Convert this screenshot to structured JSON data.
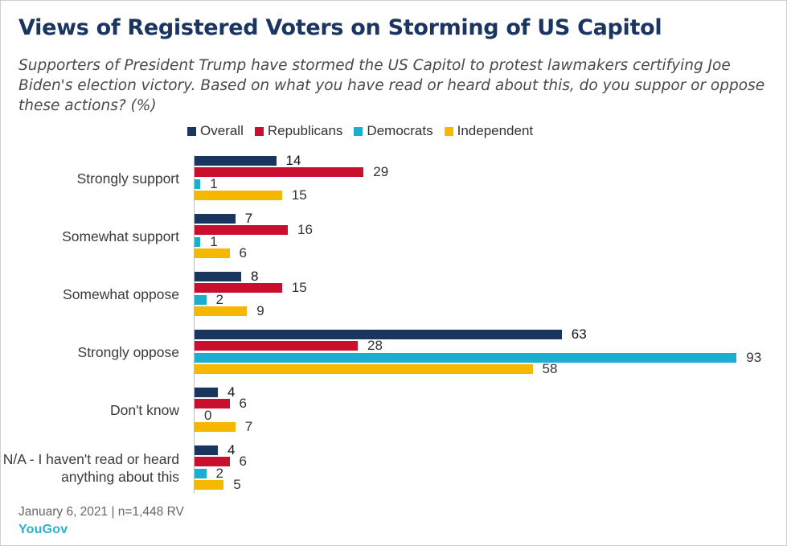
{
  "title": "Views of Registered Voters on Storming of US Capitol",
  "subtitle": "Supporters of President Trump have stormed the US Capitol to protest lawmakers certifying Joe Biden's election victory. Based on what you have read or heard about this, do you suppor or oppose these actions? (%)",
  "footer": {
    "note": "January 6, 2021 | n=1,448 RV",
    "brand": "YouGov"
  },
  "colors": {
    "Overall": "#1b3561",
    "Republicans": "#c8102e",
    "Democrats": "#1aafd0",
    "Independent": "#f4b800"
  },
  "chart_data": {
    "type": "bar",
    "orientation": "horizontal",
    "title": "Views of Registered Voters on Storming of US Capitol",
    "xlim": [
      0,
      100
    ],
    "grid": false,
    "legend": "top",
    "categories": [
      "Strongly support",
      "Somewhat support",
      "Somewhat oppose",
      "Strongly oppose",
      "Don't know",
      "N/A - I haven't read or heard anything about this"
    ],
    "series": [
      {
        "name": "Overall",
        "values": [
          14,
          7,
          8,
          63,
          4,
          4
        ]
      },
      {
        "name": "Republicans",
        "values": [
          29,
          16,
          15,
          28,
          6,
          6
        ]
      },
      {
        "name": "Democrats",
        "values": [
          1,
          1,
          2,
          93,
          0,
          2
        ]
      },
      {
        "name": "Independent",
        "values": [
          15,
          6,
          9,
          58,
          7,
          5
        ]
      }
    ]
  }
}
